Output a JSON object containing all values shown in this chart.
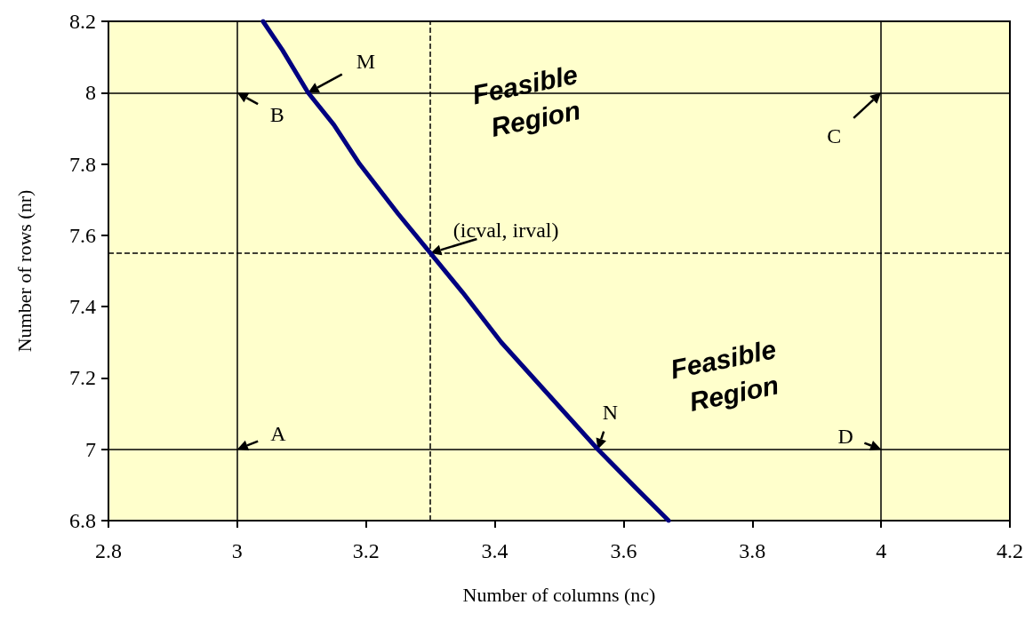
{
  "chart_data": {
    "type": "line",
    "xlabel": "Number of columns (nc)",
    "ylabel": "Number of rows (nr)",
    "x": [
      3.04,
      3.07,
      3.11,
      3.15,
      3.19,
      3.25,
      3.3,
      3.35,
      3.41,
      3.48,
      3.56,
      3.62,
      3.67
    ],
    "series": [
      {
        "color": "#000080",
        "values": [
          8.2,
          8.12,
          8.0,
          7.91,
          7.8,
          7.66,
          7.55,
          7.44,
          7.3,
          7.16,
          7.0,
          6.89,
          6.8
        ]
      }
    ],
    "xlim": [
      2.8,
      4.2
    ],
    "xticks": [
      2.8,
      3,
      3.2,
      3.4,
      3.6,
      3.8,
      4,
      4.2
    ],
    "ylim": [
      6.8,
      8.2
    ],
    "yticks": [
      6.8,
      7,
      7.2,
      7.4,
      7.6,
      7.8,
      8,
      8.2
    ],
    "ref_lines": [
      {
        "axis": "x",
        "value": 3,
        "color": "#000000",
        "line_style": "solid"
      },
      {
        "axis": "x",
        "value": 4,
        "color": "#000000",
        "line_style": "solid"
      },
      {
        "axis": "y",
        "value": 7,
        "color": "#000000",
        "line_style": "solid"
      },
      {
        "axis": "y",
        "value": 8,
        "color": "#000000",
        "line_style": "solid"
      },
      {
        "axis": "x",
        "value": 3.3,
        "color": "#000000",
        "line_style": "dashed"
      },
      {
        "axis": "y",
        "value": 7.55,
        "color": "#000000",
        "line_style": "dashed"
      }
    ],
    "annotations": [
      {
        "text": "M",
        "x": 3.11,
        "y": 8
      },
      {
        "text": "B",
        "x": 3,
        "y": 8
      },
      {
        "text": "C",
        "x": 4,
        "y": 8
      },
      {
        "text": "(icval, irval)",
        "x": 3.3,
        "y": 7.55
      },
      {
        "text": "A",
        "x": 3,
        "y": 7
      },
      {
        "text": "N",
        "x": 3.56,
        "y": 7
      },
      {
        "text": "D",
        "x": 4,
        "y": 7
      },
      "Feasible Region",
      "Feasible Region"
    ],
    "grid": false,
    "marker": "none",
    "line_style": "solid"
  }
}
